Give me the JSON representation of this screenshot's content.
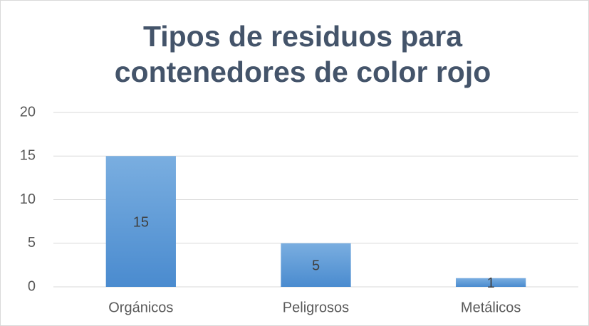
{
  "chart_data": {
    "type": "bar",
    "title": [
      "Tipos de residuos para",
      "contenedores de color rojo"
    ],
    "categories": [
      "Orgánicos",
      "Peligrosos",
      "Metálicos"
    ],
    "values": [
      15,
      5,
      1
    ],
    "color": "#5b9bd5",
    "ylim": [
      0,
      20
    ],
    "yticks": [
      0,
      5,
      10,
      15,
      20
    ],
    "grid": true
  }
}
